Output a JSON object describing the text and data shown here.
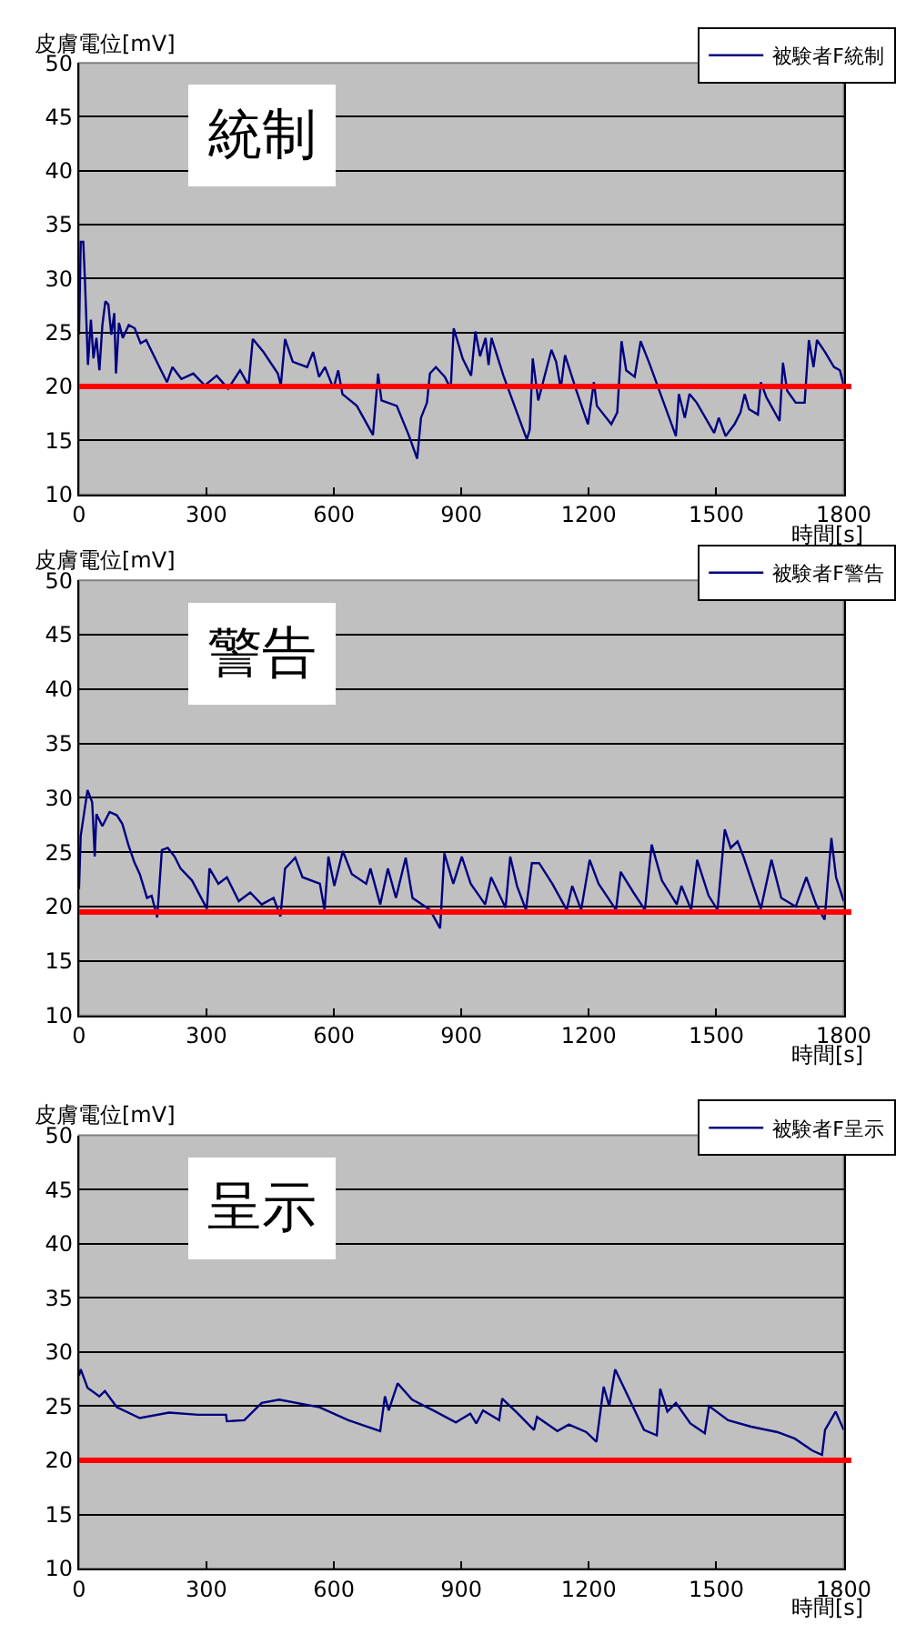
{
  "chart_data": [
    {
      "type": "line",
      "ylabel": "皮膚電位[mV]",
      "xlabel": "時間[s]",
      "annotations": [
        "統制"
      ],
      "xlim": [
        0,
        1800
      ],
      "xticks": [
        0,
        300,
        600,
        900,
        1200,
        1500,
        1800
      ],
      "ylim": [
        10,
        50
      ],
      "yticks": [
        10,
        15,
        20,
        25,
        30,
        35,
        40,
        45,
        50
      ],
      "grid": "y",
      "legend": "top right",
      "marker": "none",
      "line_style": "solid",
      "ref_lines": [
        {
          "axis": "y",
          "value": 20,
          "color": "#ff0000"
        }
      ],
      "series": [
        {
          "name": "被験者F統制",
          "color": "#000080",
          "x": [
            0,
            4,
            10,
            14,
            21,
            28,
            34,
            41,
            48,
            55,
            62,
            69,
            76,
            83,
            87,
            94,
            103,
            117,
            131,
            145,
            158,
            193,
            207,
            220,
            241,
            269,
            296,
            324,
            351,
            379,
            399,
            409,
            434,
            468,
            475,
            485,
            503,
            537,
            551,
            565,
            579,
            599,
            610,
            620,
            654,
            692,
            704,
            712,
            748,
            777,
            796,
            805,
            819,
            826,
            840,
            861,
            875,
            882,
            903,
            923,
            933,
            944,
            957,
            964,
            971,
            999,
            1054,
            1061,
            1068,
            1081,
            1112,
            1123,
            1134,
            1144,
            1171,
            1198,
            1212,
            1219,
            1253,
            1267,
            1277,
            1288,
            1308,
            1322,
            1343,
            1405,
            1412,
            1426,
            1437,
            1454,
            1495,
            1506,
            1522,
            1543,
            1557,
            1567,
            1577,
            1598,
            1605,
            1618,
            1649,
            1657,
            1667,
            1687,
            1708,
            1718,
            1729,
            1737,
            1756,
            1777,
            1791,
            1800
          ],
          "values": [
            24.8,
            33.4,
            33.4,
            29.8,
            22,
            26.2,
            22.6,
            24.5,
            21.5,
            25.7,
            27.9,
            27.6,
            24.8,
            26.8,
            21.2,
            25.9,
            24.5,
            25.7,
            25.4,
            24,
            24.3,
            21.5,
            20.4,
            21.8,
            20.7,
            21.2,
            20.1,
            21,
            19.8,
            21.5,
            20.1,
            24.4,
            23.2,
            21.2,
            20.1,
            24.4,
            22.3,
            21.8,
            23.2,
            20.9,
            21.8,
            19.8,
            21.5,
            19.3,
            18.2,
            15.5,
            21.2,
            18.7,
            18.2,
            15.4,
            13.3,
            17.1,
            18.5,
            21.2,
            21.8,
            20.9,
            19.8,
            25.4,
            22.6,
            21,
            25.1,
            22.8,
            24.5,
            22,
            24.5,
            21,
            15.1,
            16,
            22.6,
            18.7,
            23.4,
            22.3,
            19.8,
            22.9,
            19.6,
            16.5,
            20.4,
            18.2,
            16.5,
            17.6,
            24.2,
            21.5,
            20.9,
            24.2,
            22.1,
            15.4,
            19.3,
            17.1,
            19.3,
            18.5,
            15.7,
            17.1,
            15.4,
            16.5,
            17.6,
            19.3,
            17.9,
            17.4,
            20.4,
            19,
            16.8,
            22.2,
            19.6,
            18.5,
            18.5,
            24.3,
            21.8,
            24.3,
            23.2,
            21.8,
            21.5,
            20.1
          ]
        }
      ]
    },
    {
      "type": "line",
      "ylabel": "皮膚電位[mV]",
      "xlabel": "時間[s]",
      "annotations": [
        "警告"
      ],
      "xlim": [
        0,
        1800
      ],
      "xticks": [
        0,
        300,
        600,
        900,
        1200,
        1500,
        1800
      ],
      "ylim": [
        10,
        50
      ],
      "yticks": [
        10,
        15,
        20,
        25,
        30,
        35,
        40,
        45,
        50
      ],
      "grid": "y",
      "legend": "top right",
      "marker": "none",
      "line_style": "solid",
      "ref_lines": [
        {
          "axis": "y",
          "value": 19.5,
          "color": "#ff0000"
        }
      ],
      "series": [
        {
          "name": "被験者F警告",
          "color": "#000080",
          "x": [
            0,
            4,
            20,
            31,
            37,
            41,
            55,
            72,
            89,
            102,
            116,
            130,
            143,
            160,
            171,
            184,
            195,
            209,
            225,
            239,
            266,
            301,
            307,
            328,
            348,
            376,
            403,
            430,
            458,
            474,
            485,
            509,
            526,
            567,
            578,
            587,
            601,
            621,
            642,
            676,
            686,
            709,
            727,
            746,
            769,
            785,
            826,
            850,
            860,
            881,
            901,
            922,
            956,
            970,
            1004,
            1015,
            1031,
            1052,
            1066,
            1083,
            1114,
            1148,
            1161,
            1182,
            1202,
            1223,
            1264,
            1275,
            1305,
            1332,
            1348,
            1372,
            1407,
            1418,
            1441,
            1455,
            1482,
            1503,
            1520,
            1534,
            1550,
            1564,
            1592,
            1605,
            1630,
            1653,
            1687,
            1712,
            1735,
            1755,
            1771,
            1782,
            1800
          ],
          "values": [
            21.6,
            26.5,
            30.7,
            29.6,
            24.6,
            28.5,
            27.4,
            28.7,
            28.4,
            27.6,
            25.7,
            24.1,
            23,
            20.8,
            21,
            19,
            25.2,
            25.4,
            24.6,
            23.5,
            22.4,
            19.8,
            23.5,
            22.1,
            22.7,
            20.5,
            21.3,
            20.2,
            20.8,
            19.1,
            23.5,
            24.5,
            22.7,
            22.1,
            19.7,
            24.6,
            21.9,
            25.1,
            23,
            22.1,
            23.5,
            20.2,
            23.5,
            20.8,
            24.5,
            20.8,
            19.7,
            18,
            24.9,
            22.1,
            24.6,
            22.1,
            20.2,
            22.7,
            19.9,
            24.6,
            21.9,
            19.7,
            24,
            24,
            22.1,
            19.7,
            21.9,
            19.7,
            24.3,
            22.1,
            19.7,
            23.2,
            21.3,
            19.7,
            25.7,
            22.4,
            20.2,
            21.9,
            19.7,
            24.3,
            21,
            19.7,
            27.1,
            25.4,
            26,
            24.6,
            21.3,
            19.8,
            24.3,
            20.8,
            20,
            22.7,
            20.2,
            18.8,
            26.3,
            22.7,
            20.5
          ]
        }
      ]
    },
    {
      "type": "line",
      "ylabel": "皮膚電位[mV]",
      "xlabel": "時間[s]",
      "annotations": [
        "呈示"
      ],
      "xlim": [
        0,
        1800
      ],
      "xticks": [
        0,
        300,
        600,
        900,
        1200,
        1500,
        1800
      ],
      "ylim": [
        10,
        50
      ],
      "yticks": [
        10,
        15,
        20,
        25,
        30,
        35,
        40,
        45,
        50
      ],
      "grid": "y",
      "legend": "top right",
      "marker": "none",
      "line_style": "solid",
      "ref_lines": [
        {
          "axis": "y",
          "value": 20,
          "color": "#ff0000"
        }
      ],
      "series": [
        {
          "name": "被験者F呈示",
          "color": "#000080",
          "x": [
            0,
            4,
            20,
            48,
            61,
            89,
            143,
            212,
            280,
            346,
            348,
            389,
            430,
            471,
            566,
            634,
            709,
            720,
            729,
            750,
            784,
            839,
            887,
            921,
            935,
            951,
            989,
            996,
            1031,
            1071,
            1078,
            1126,
            1153,
            1194,
            1218,
            1235,
            1248,
            1262,
            1296,
            1330,
            1360,
            1368,
            1385,
            1405,
            1439,
            1473,
            1483,
            1528,
            1582,
            1644,
            1685,
            1726,
            1749,
            1756,
            1781,
            1800
          ],
          "values": [
            27.8,
            28.4,
            26.7,
            25.9,
            26.4,
            24.9,
            23.9,
            24.4,
            24.2,
            24.2,
            23.6,
            23.7,
            25.3,
            25.6,
            24.9,
            23.7,
            22.7,
            25.9,
            24.6,
            27.1,
            25.6,
            24.5,
            23.5,
            24.3,
            23.4,
            24.6,
            23.7,
            25.7,
            24.4,
            22.8,
            24,
            22.7,
            23.3,
            22.6,
            21.7,
            26.8,
            25,
            28.4,
            25.6,
            22.8,
            22.3,
            26.6,
            24.5,
            25.3,
            23.4,
            22.5,
            25,
            23.7,
            23.1,
            22.6,
            22,
            20.9,
            20.5,
            22.8,
            24.5,
            22.8
          ]
        }
      ]
    }
  ]
}
